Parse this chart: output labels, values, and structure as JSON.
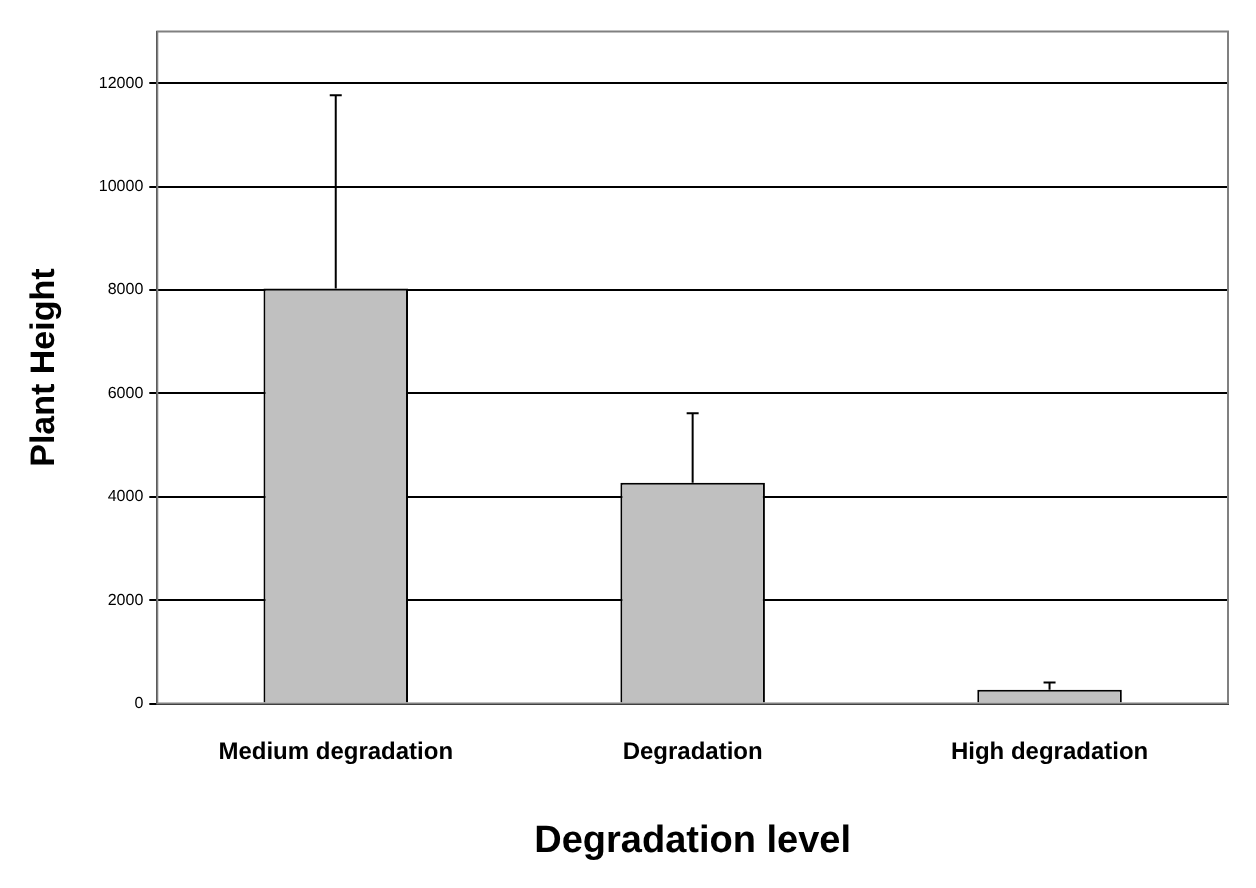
{
  "chart_data": {
    "type": "bar",
    "xlabel": "Degradation level",
    "ylabel": "Plant Height",
    "categories": [
      "Medium degradation",
      "Degradation",
      "High degradation"
    ],
    "values": [
      8030,
      4270,
      270
    ],
    "errors": [
      [
        8030,
        11770
      ],
      [
        4270,
        5615
      ],
      [
        270,
        410
      ]
    ],
    "color": "#c0c0c0",
    "ylim": [
      0,
      13000
    ],
    "yticks": [
      0,
      2000,
      4000,
      6000,
      8000,
      10000,
      12000
    ],
    "grid": "y",
    "legend": false
  }
}
